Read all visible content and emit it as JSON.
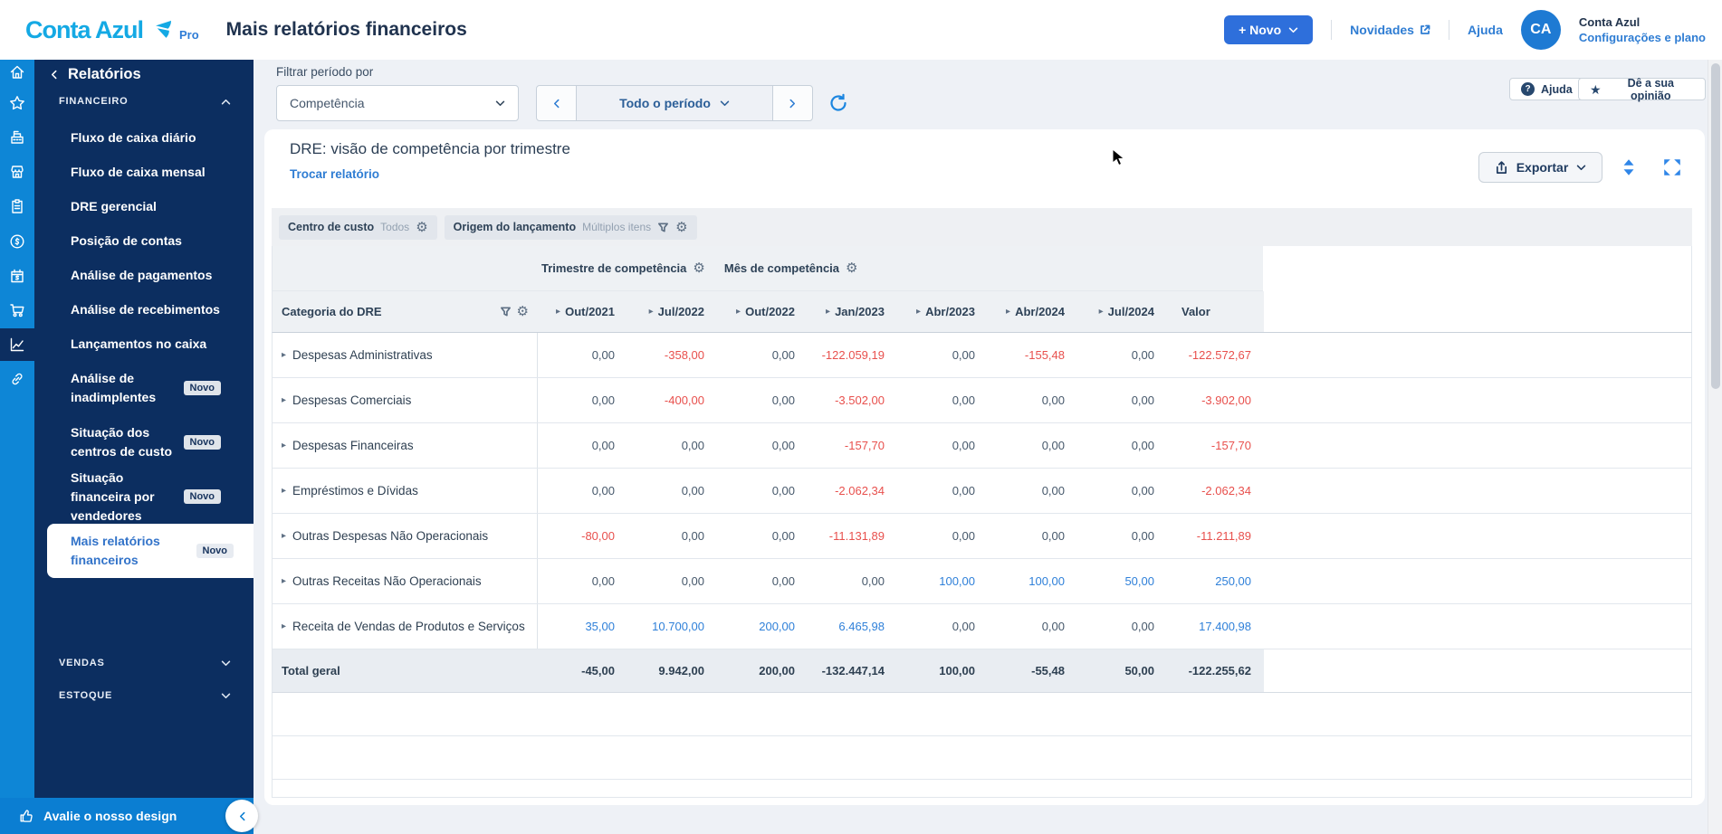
{
  "header": {
    "logo": "Conta Azul",
    "logo_pro": "Pro",
    "page_title": "Mais relatórios financeiros",
    "novo_button": "+ Novo",
    "novidades_link": "Novidades",
    "ajuda_link": "Ajuda",
    "avatar_initials": "CA",
    "account_name": "Conta Azul",
    "account_settings": "Configurações e plano"
  },
  "sidebar": {
    "back": "Relatórios",
    "section_financeiro": "FINANCEIRO",
    "items": [
      {
        "label": "Fluxo de caixa diário"
      },
      {
        "label": "Fluxo de caixa mensal"
      },
      {
        "label": "DRE gerencial"
      },
      {
        "label": "Posição de contas"
      },
      {
        "label": "Análise de pagamentos"
      },
      {
        "label": "Análise de recebimentos"
      },
      {
        "label": "Lançamentos no caixa"
      },
      {
        "label": "Análise de inadimplentes",
        "badge": "Novo"
      },
      {
        "label": "Situação dos centros de custo",
        "badge": "Novo"
      },
      {
        "label": "Situação financeira por vendedores",
        "badge": "Novo"
      },
      {
        "label": "Mais relatórios financeiros",
        "badge": "Novo",
        "selected": true
      }
    ],
    "sections_collapsed": [
      "VENDAS",
      "ESTOQUE"
    ],
    "footer": "Avalie o nosso design"
  },
  "toolbar": {
    "filter_label": "Filtrar período por",
    "filter_value": "Competência",
    "period_value": "Todo o período",
    "help_button": "Ajuda",
    "feedback_button": "Dê a sua opinião"
  },
  "report": {
    "title": "DRE: visão de competência por trimestre",
    "change_link": "Trocar relatório",
    "export_button": "Exportar"
  },
  "table": {
    "filters": [
      {
        "name": "Centro de custo",
        "value": "Todos"
      },
      {
        "name": "Origem do lançamento",
        "value": "Múltiplos itens"
      }
    ],
    "dimension_headers": [
      "Trimestre de competência",
      "Mês de competência"
    ],
    "row_header": "Categoria do DRE",
    "columns": [
      "Out/2021",
      "Jul/2022",
      "Out/2022",
      "Jan/2023",
      "Abr/2023",
      "Abr/2024",
      "Jul/2024"
    ],
    "value_column": "Valor",
    "rows": [
      {
        "category": "Despesas Administrativas",
        "values": [
          "0,00",
          "-358,00",
          "0,00",
          "-122.059,19",
          "0,00",
          "-155,48",
          "0,00",
          "-122.572,67"
        ]
      },
      {
        "category": "Despesas Comerciais",
        "values": [
          "0,00",
          "-400,00",
          "0,00",
          "-3.502,00",
          "0,00",
          "0,00",
          "0,00",
          "-3.902,00"
        ]
      },
      {
        "category": "Despesas Financeiras",
        "values": [
          "0,00",
          "0,00",
          "0,00",
          "-157,70",
          "0,00",
          "0,00",
          "0,00",
          "-157,70"
        ]
      },
      {
        "category": "Empréstimos e Dívidas",
        "values": [
          "0,00",
          "0,00",
          "0,00",
          "-2.062,34",
          "0,00",
          "0,00",
          "0,00",
          "-2.062,34"
        ]
      },
      {
        "category": "Outras Despesas Não Operacionais",
        "values": [
          "-80,00",
          "0,00",
          "0,00",
          "-11.131,89",
          "0,00",
          "0,00",
          "0,00",
          "-11.211,89"
        ]
      },
      {
        "category": "Outras Receitas Não Operacionais",
        "values": [
          "0,00",
          "0,00",
          "0,00",
          "0,00",
          "100,00",
          "100,00",
          "50,00",
          "250,00"
        ]
      },
      {
        "category": "Receita de Vendas de Produtos e Serviços",
        "values": [
          "35,00",
          "10.700,00",
          "200,00",
          "6.465,98",
          "0,00",
          "0,00",
          "0,00",
          "17.400,98"
        ]
      }
    ],
    "total": {
      "label": "Total geral",
      "values": [
        "-45,00",
        "9.942,00",
        "200,00",
        "-132.447,14",
        "100,00",
        "-55,48",
        "50,00",
        "-122.255,62"
      ]
    }
  },
  "colors": {
    "brand_cyan": "#14a9e4",
    "sidebar_navy": "#0c2e60",
    "rail_blue": "#0e86d6",
    "link_blue": "#2f7dd3",
    "negative_red": "#e8504d",
    "positive_blue": "#2f80d9"
  }
}
